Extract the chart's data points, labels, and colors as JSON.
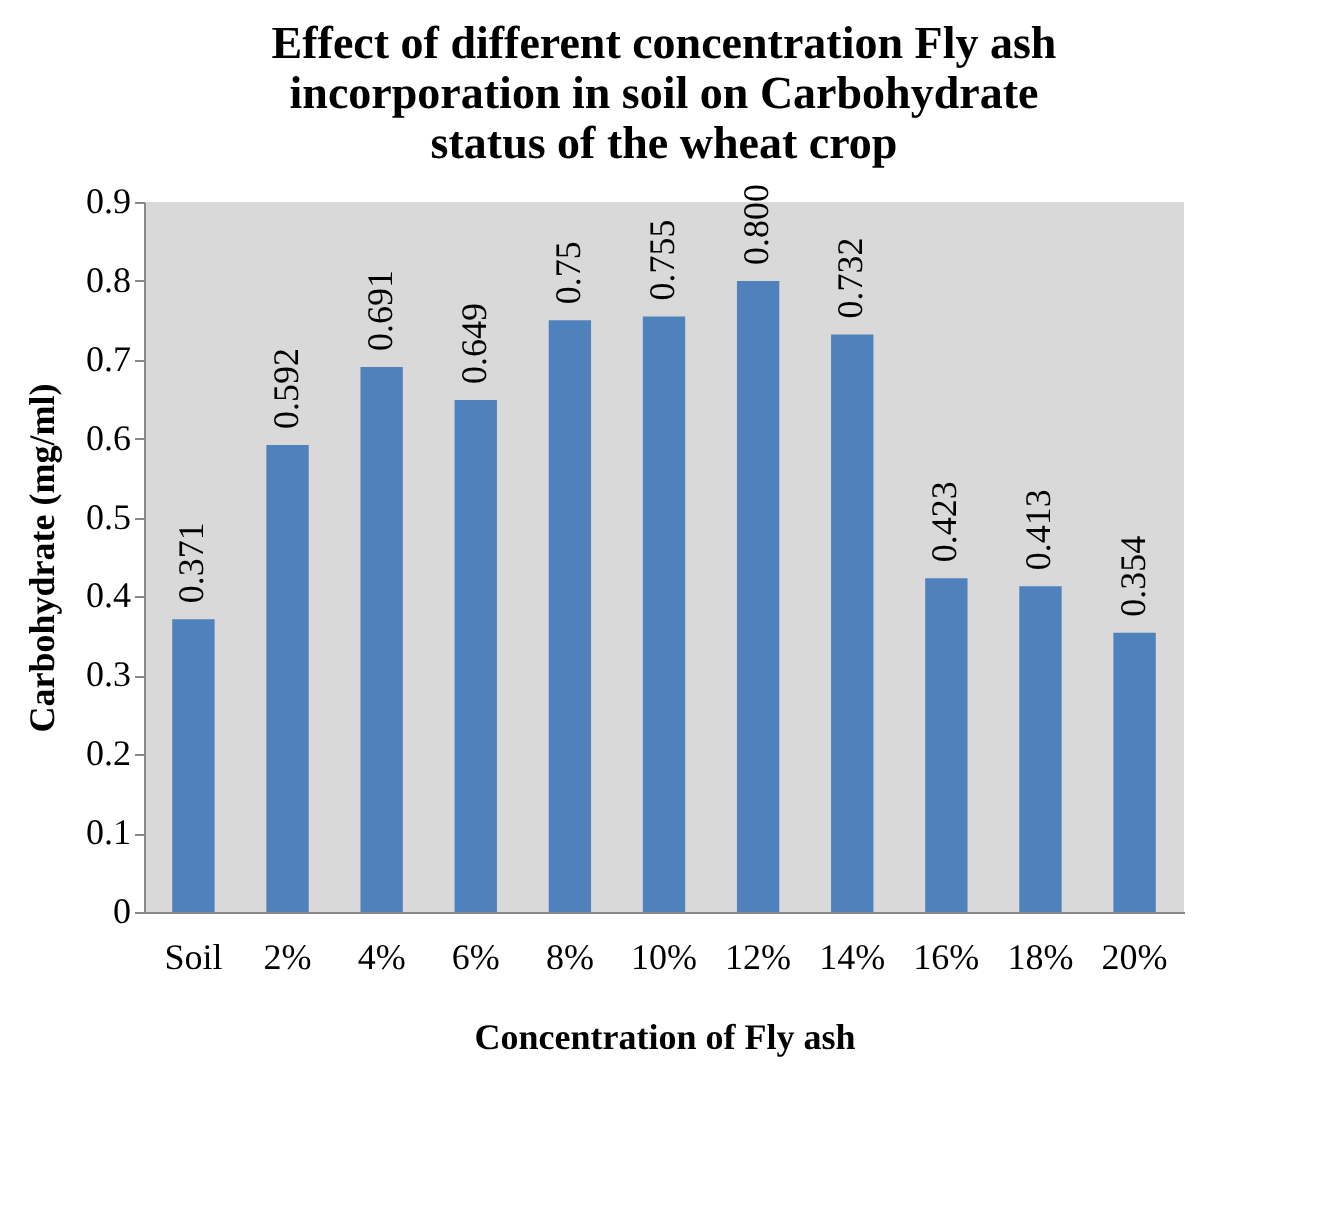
{
  "chart_data": {
    "type": "bar",
    "title": "Effect of different concentration Fly ash incorporation in soil on Carbohydrate status of the wheat crop",
    "xlabel": "Concentration  of  Fly ash",
    "ylabel": "Carbohydrate (mg/ml)",
    "categories": [
      "Soil",
      "2%",
      "4%",
      "6%",
      "8%",
      "10%",
      "12%",
      "14%",
      "16%",
      "18%",
      "20%"
    ],
    "values": [
      0.371,
      0.592,
      0.691,
      0.649,
      0.75,
      0.755,
      0.8,
      0.732,
      0.423,
      0.413,
      0.354
    ],
    "value_labels": [
      "0.371",
      "0.592",
      "0.691",
      "0.649",
      "0.75",
      "0.755",
      "0.800",
      "0.732",
      "0.423",
      "0.413",
      "0.354"
    ],
    "color": "#4f81bd",
    "ylim": [
      0,
      0.9
    ],
    "yticks": [
      0,
      0.1,
      0.2,
      0.3,
      0.4,
      0.5,
      0.6,
      0.7,
      0.8,
      0.9
    ],
    "grid": false,
    "legend": false
  }
}
